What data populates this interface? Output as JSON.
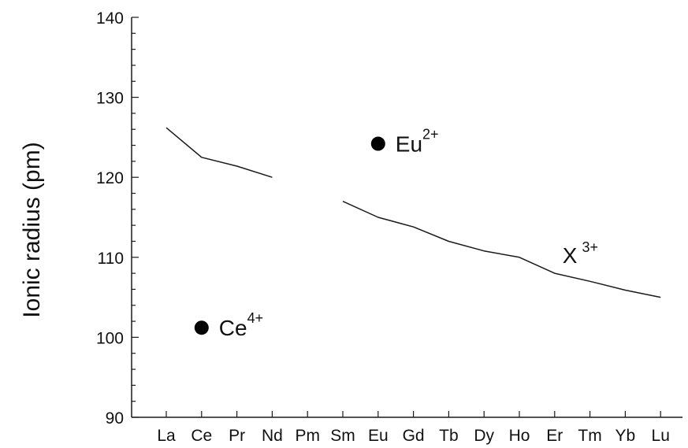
{
  "chart_data": {
    "type": "line",
    "title": "",
    "xlabel": "",
    "ylabel": "Ionic radius (pm)",
    "ylim": [
      90,
      140
    ],
    "yticks": [
      90,
      100,
      110,
      120,
      130,
      140
    ],
    "categories": [
      "La",
      "Ce",
      "Pr",
      "Nd",
      "Pm",
      "Sm",
      "Eu",
      "Gd",
      "Tb",
      "Dy",
      "Ho",
      "Er",
      "Tm",
      "Yb",
      "Lu"
    ],
    "grid": false,
    "series": [
      {
        "name": "X3+",
        "label_base": "X",
        "label_sup": "3+",
        "segments": [
          [
            {
              "x": "La",
              "y": 126.2
            },
            {
              "x": "Ce",
              "y": 122.5
            },
            {
              "x": "Pr",
              "y": 121.4
            },
            {
              "x": "Nd",
              "y": 120.0
            }
          ],
          [
            {
              "x": "Sm",
              "y": 117.0
            },
            {
              "x": "Eu",
              "y": 115.0
            },
            {
              "x": "Gd",
              "y": 113.8
            },
            {
              "x": "Tb",
              "y": 112.0
            },
            {
              "x": "Dy",
              "y": 110.8
            },
            {
              "x": "Ho",
              "y": 110.0
            },
            {
              "x": "Er",
              "y": 108.0
            },
            {
              "x": "Tm",
              "y": 107.0
            },
            {
              "x": "Yb",
              "y": 105.9
            },
            {
              "x": "Lu",
              "y": 105.0
            }
          ]
        ],
        "label_anchor": {
          "x": "Er",
          "y": 110.3
        }
      }
    ],
    "points": [
      {
        "name": "Eu2+",
        "label_base": "Eu",
        "label_sup": "2+",
        "x": "Eu",
        "y": 124.2
      },
      {
        "name": "Ce4+",
        "label_base": "Ce",
        "label_sup": "4+",
        "x": "Ce",
        "y": 101.2
      }
    ]
  },
  "colors": {
    "line": "#1a1a1a",
    "marker": "#000000",
    "axis": "#1a1a1a"
  }
}
